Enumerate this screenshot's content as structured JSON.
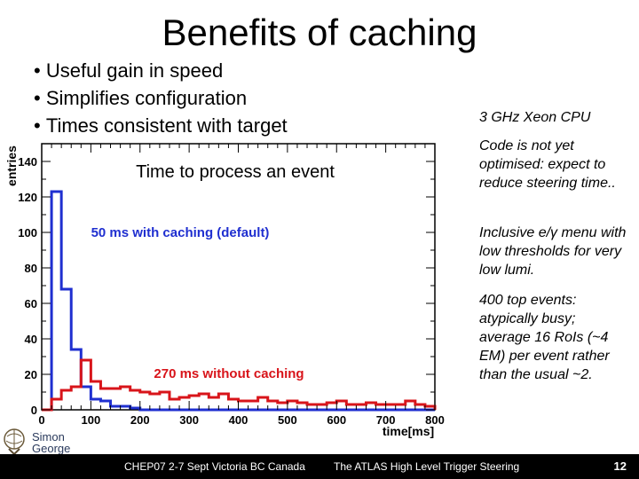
{
  "slide": {
    "title": "Benefits of caching",
    "bullets": [
      "Useful gain in speed",
      "Simplifies configuration",
      "Times consistent with target"
    ],
    "notes": [
      "3 GHz Xeon CPU",
      "Code is not yet optimised: expect to reduce steering time..",
      "Inclusive e/γ menu with low thresholds for very low lumi.",
      "400 top events: atypically busy; average 16 RoIs (~4 EM) per event rather than the usual ~2."
    ],
    "author": [
      "Simon",
      "George"
    ],
    "footer_left": "CHEP07 2-7 Sept Victoria BC Canada",
    "footer_center": "The ATLAS High Level Trigger Steering",
    "page_number": "12"
  },
  "chart_data": {
    "type": "histogram",
    "title": "Time to process an event",
    "xlabel": "time[ms]",
    "ylabel": "entries",
    "xlim": [
      0,
      800
    ],
    "ylim": [
      0,
      150
    ],
    "xticks": [
      0,
      100,
      200,
      300,
      400,
      500,
      600,
      700,
      800
    ],
    "yticks": [
      0,
      20,
      40,
      60,
      80,
      100,
      120,
      140
    ],
    "bin_width": 20,
    "series": [
      {
        "name": "50 ms with caching (default)",
        "color": "#1f2fd0",
        "values": [
          0,
          123,
          68,
          34,
          13,
          6,
          5,
          2,
          2,
          1,
          0,
          0,
          0,
          0,
          0,
          0,
          0,
          0,
          0,
          0,
          0,
          0,
          0,
          0,
          0,
          0,
          0,
          0,
          0,
          0,
          0,
          0,
          0,
          0,
          0,
          0,
          0,
          0,
          0,
          0
        ]
      },
      {
        "name": "270 ms without caching",
        "color": "#d8141a",
        "values": [
          0,
          6,
          11,
          13,
          28,
          16,
          12,
          12,
          13,
          11,
          10,
          9,
          10,
          6,
          7,
          8,
          9,
          7,
          9,
          6,
          5,
          5,
          7,
          5,
          4,
          5,
          4,
          3,
          3,
          4,
          5,
          3,
          3,
          4,
          3,
          3,
          3,
          5,
          3,
          2
        ]
      }
    ]
  }
}
